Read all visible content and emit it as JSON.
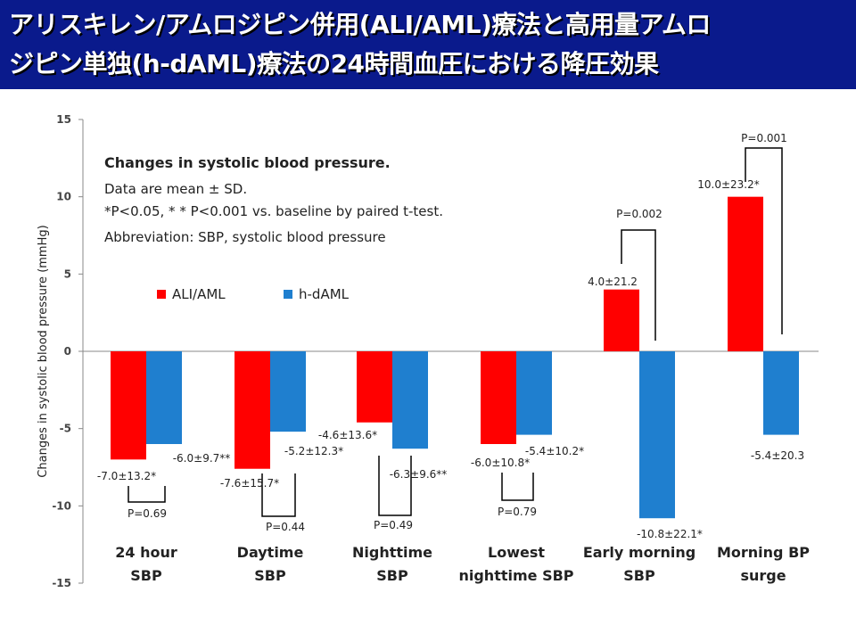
{
  "slide": {
    "title": "アリスキレン/アムロジピン併用(ALI/AML)療法と高用量アムロ\nジピン単独(h-dAML)療法の24時間血圧における降圧効果"
  },
  "notes": {
    "heading": "Changes in systolic blood pressure.",
    "line1": "Data are mean ± SD.",
    "line2": "*P<0.05, * * P<0.001 vs. baseline by paired t-test.",
    "line3": "Abbreviation: SBP, systolic blood pressure"
  },
  "colors": {
    "ali_aml": "#ff0000",
    "h_daml": "#1f7fcf",
    "title_bg": "#0a1a8c"
  },
  "chart_data": {
    "type": "bar",
    "title": "",
    "ylabel": "Changes in systolic blood pressure (mmHg)",
    "xlabel": "",
    "ylim": [
      -15,
      15
    ],
    "yticks": [
      15,
      10,
      5,
      0,
      -5,
      -10,
      -15
    ],
    "grid": false,
    "legend": "upper-left",
    "categories": [
      [
        "24 hour",
        "SBP"
      ],
      [
        "Daytime",
        "SBP"
      ],
      [
        "Nighttime",
        "SBP"
      ],
      [
        "Lowest",
        "nighttime SBP"
      ],
      [
        "Early morning",
        "SBP"
      ],
      [
        "Morning BP",
        "surge"
      ]
    ],
    "series": [
      {
        "name": "ALI/AML",
        "values": [
          -7.0,
          -7.6,
          -4.6,
          -6.0,
          4.0,
          10.0
        ],
        "labels": [
          "-7.0±13.2*",
          "-7.6±15.7*",
          "-4.6±13.6*",
          "-6.0±10.8*",
          "4.0±21.2",
          "10.0±23.2*"
        ]
      },
      {
        "name": "h-dAML",
        "values": [
          -6.0,
          -5.2,
          -6.3,
          -5.4,
          -10.8,
          -5.4
        ],
        "labels": [
          "-6.0±9.7**",
          "-5.2±12.3*",
          "-6.3±9.6**",
          "-5.4±10.2*",
          "-10.8±22.1*",
          "-5.4±20.3"
        ]
      }
    ],
    "pvalues": [
      "P=0.69",
      "P=0.44",
      "P=0.49",
      "P=0.79",
      "P=0.002",
      "P=0.001"
    ]
  }
}
